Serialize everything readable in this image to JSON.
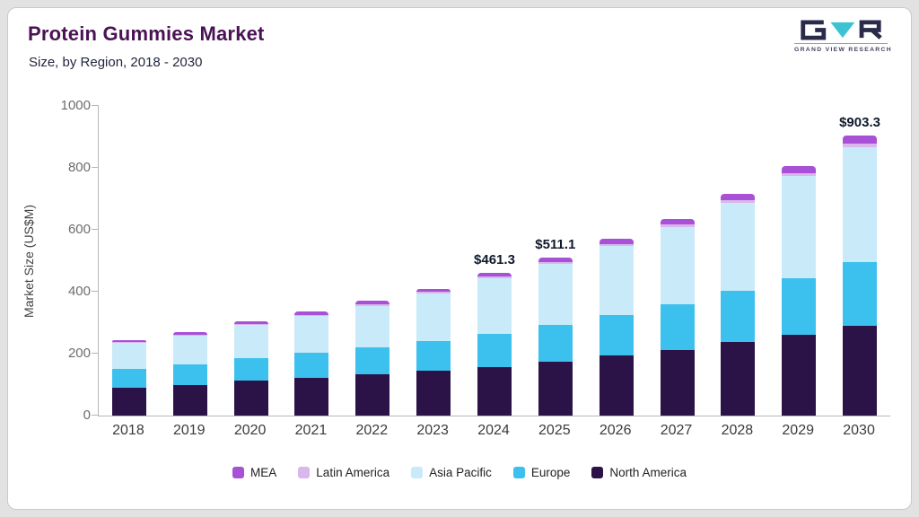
{
  "header": {
    "title": "Protein Gummies Market",
    "subtitle": "Size, by Region, 2018 - 2030",
    "logo_text": "GRAND VIEW RESEARCH"
  },
  "chart_data": {
    "type": "bar",
    "stacked": true,
    "title": "Protein Gummies Market Size, by Region, 2018 - 2030",
    "ylabel": "Market Size (US$M)",
    "ylim": [
      0,
      1000
    ],
    "yticks": [
      0,
      200,
      400,
      600,
      800,
      1000
    ],
    "grid": false,
    "legend_position": "bottom",
    "categories": [
      "2018",
      "2019",
      "2020",
      "2021",
      "2022",
      "2023",
      "2024",
      "2025",
      "2026",
      "2027",
      "2028",
      "2029",
      "2030"
    ],
    "series": [
      {
        "name": "North America",
        "color": "#2b1347",
        "values": [
          90,
          100,
          112,
          122,
          133,
          145,
          158,
          175,
          195,
          213,
          238,
          260,
          290
        ]
      },
      {
        "name": "Europe",
        "color": "#3cc0ed",
        "values": [
          60,
          66,
          73,
          80,
          86,
          97,
          105,
          117,
          130,
          147,
          164,
          185,
          205
        ]
      },
      {
        "name": "Asia Pacific",
        "color": "#c9eaf9",
        "values": [
          84,
          93,
          107,
          119,
          136,
          152,
          180,
          198,
          222,
          250,
          285,
          328,
          372
        ]
      },
      {
        "name": "Latin America",
        "color": "#d9b6ec",
        "values": [
          3,
          3,
          4,
          4,
          4,
          5,
          5.3,
          6.1,
          7,
          8,
          9,
          10,
          12.3
        ]
      },
      {
        "name": "MEA",
        "color": "#a851d6",
        "values": [
          8,
          8,
          9,
          10,
          11,
          11,
          13,
          15,
          16,
          17,
          19,
          22,
          24
        ]
      }
    ],
    "annotations": [
      {
        "category": "2024",
        "text": "$461.3"
      },
      {
        "category": "2025",
        "text": "$511.1"
      },
      {
        "category": "2030",
        "text": "$903.3"
      }
    ],
    "legend": [
      "MEA",
      "Latin America",
      "Asia Pacific",
      "Europe",
      "North America"
    ]
  }
}
